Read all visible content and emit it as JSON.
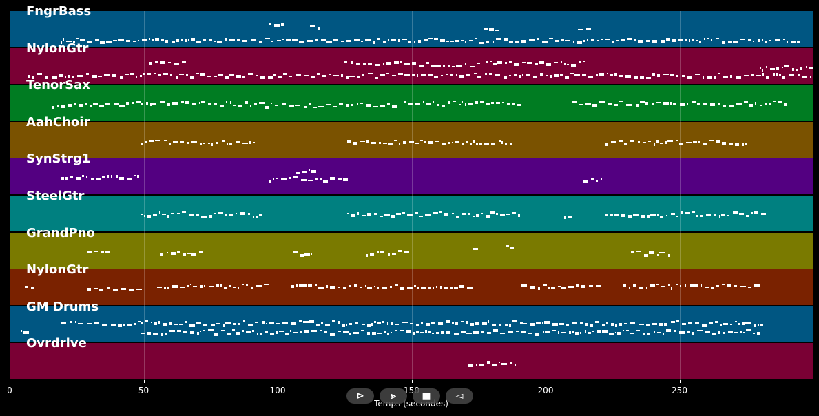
{
  "chart_data": {
    "type": "piano-roll",
    "xlabel": "Temps (secondes)",
    "x_ticks": [
      0,
      50,
      100,
      150,
      200,
      250
    ],
    "xlim": [
      0,
      300
    ],
    "grid": true,
    "tracks": [
      {
        "name": "FngrBass",
        "color": "#005682",
        "segments": [
          [
            19,
            294,
            0.8
          ],
          [
            97,
            103,
            0.35
          ],
          [
            112,
            116,
            0.4
          ],
          [
            177,
            182,
            0.5
          ],
          [
            212,
            218,
            0.45
          ]
        ]
      },
      {
        "name": "NylonGtr",
        "color": "#7a0034",
        "segments": [
          [
            7,
            300,
            0.75
          ],
          [
            52,
            66,
            0.4
          ],
          [
            125,
            148,
            0.4
          ],
          [
            150,
            175,
            0.45
          ],
          [
            178,
            215,
            0.4
          ],
          [
            280,
            300,
            0.55
          ]
        ]
      },
      {
        "name": "TenorSax",
        "color": "#007c22",
        "segments": [
          [
            16,
            41,
            0.55
          ],
          [
            41,
            95,
            0.5
          ],
          [
            95,
            145,
            0.55
          ],
          [
            147,
            191,
            0.5
          ],
          [
            210,
            232,
            0.5
          ],
          [
            234,
            290,
            0.5
          ]
        ]
      },
      {
        "name": "AahChoir",
        "color": "#7a5200",
        "segments": [
          [
            49,
            92,
            0.55
          ],
          [
            126,
            187,
            0.55
          ],
          [
            222,
            276,
            0.55
          ]
        ]
      },
      {
        "name": "SynStrg1",
        "color": "#530081",
        "segments": [
          [
            19,
            49,
            0.5
          ],
          [
            97,
            125,
            0.55
          ],
          [
            107,
            115,
            0.35
          ],
          [
            214,
            222,
            0.55
          ]
        ]
      },
      {
        "name": "SteelGtr",
        "color": "#008080",
        "segments": [
          [
            49,
            95,
            0.5
          ],
          [
            126,
            191,
            0.5
          ],
          [
            207,
            209,
            0.55
          ],
          [
            222,
            281,
            0.5
          ]
        ]
      },
      {
        "name": "GrandPno",
        "color": "#7a7a00",
        "segments": [
          [
            29,
            36,
            0.55
          ],
          [
            56,
            71,
            0.55
          ],
          [
            106,
            113,
            0.55
          ],
          [
            133,
            148,
            0.55
          ],
          [
            173,
            174,
            0.4
          ],
          [
            185,
            187,
            0.4
          ],
          [
            232,
            246,
            0.55
          ]
        ]
      },
      {
        "name": "NylonGtr",
        "color": "#7a2200",
        "segments": [
          [
            6,
            10,
            0.5
          ],
          [
            29,
            49,
            0.5
          ],
          [
            55,
            95,
            0.45
          ],
          [
            105,
            172,
            0.45
          ],
          [
            191,
            220,
            0.45
          ],
          [
            229,
            280,
            0.45
          ]
        ]
      },
      {
        "name": "GM Drums",
        "color": "#005682",
        "segments": [
          [
            19,
            281,
            0.45
          ],
          [
            49,
            281,
            0.7
          ],
          [
            4,
            6,
            0.65
          ]
        ]
      },
      {
        "name": "Ovrdrive",
        "color": "#7a0034",
        "segments": [
          [
            171,
            190,
            0.55
          ]
        ]
      }
    ]
  },
  "controls": {
    "play_label": "⊳",
    "fast_forward_label": "⪢",
    "stop_label": "■",
    "rewind_label": "◅"
  }
}
